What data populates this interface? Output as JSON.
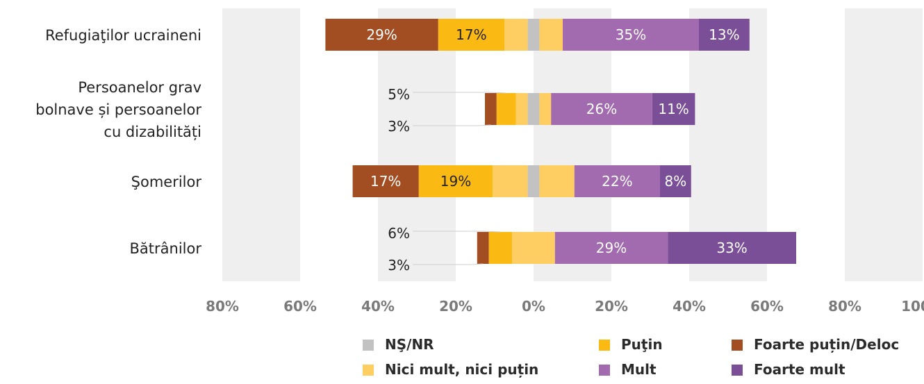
{
  "chart_data": {
    "type": "bar",
    "orientation": "horizontal",
    "stacking": "diverging",
    "categories": [
      "Refugiaţilor ucraineni",
      "Persoanelor grav bolnave și persoanelor cu dizabilități",
      "Şomerilor",
      "Bătrânilor"
    ],
    "category_lines": [
      [
        "Refugiaţilor ucraineni"
      ],
      [
        "Persoanelor grav",
        "bolnave și persoanelor",
        "cu dizabilități"
      ],
      [
        "Şomerilor"
      ],
      [
        "Bătrânilor"
      ]
    ],
    "series": [
      {
        "name": "Foarte puțin/Deloc",
        "side": "negative",
        "color": "#a24e22",
        "label_color": "#ffffff",
        "values": [
          29,
          3,
          17,
          3
        ],
        "labels": [
          "29%",
          "",
          "17%",
          ""
        ]
      },
      {
        "name": "Puţin",
        "side": "negative",
        "color": "#fbb914",
        "label_color": "#222222",
        "values": [
          17,
          5,
          19,
          6
        ],
        "labels": [
          "17%",
          "",
          "19%",
          ""
        ]
      },
      {
        "name": "Nici mult, nici puțin",
        "side": "split",
        "color": "#fece63",
        "label_color": "#222222",
        "values": [
          12,
          6,
          18,
          11
        ],
        "labels": [
          "",
          "",
          "",
          ""
        ]
      },
      {
        "name": "NŞ/NR",
        "side": "split",
        "color": "#c2c2c2",
        "label_color": "#222222",
        "values": [
          3,
          3,
          3,
          0
        ],
        "labels": [
          "",
          "",
          "",
          ""
        ]
      },
      {
        "name": "Mult",
        "side": "positive",
        "color": "#a26aaf",
        "label_color": "#ffffff",
        "values": [
          35,
          26,
          22,
          29
        ],
        "labels": [
          "35%",
          "26%",
          "22%",
          "29%"
        ]
      },
      {
        "name": "Foarte mult",
        "side": "positive",
        "color": "#7b4f98",
        "label_color": "#ffffff",
        "values": [
          13,
          11,
          8,
          33
        ],
        "labels": [
          "13%",
          "11%",
          "8%",
          "33%"
        ]
      }
    ],
    "callouts": [
      {
        "category_index": 1,
        "series": "Puţin",
        "text": "5%"
      },
      {
        "category_index": 1,
        "series": "Foarte puțin/Deloc",
        "text": "3%"
      },
      {
        "category_index": 3,
        "series": "Puţin",
        "text": "6%"
      },
      {
        "category_index": 3,
        "series": "Foarte puțin/Deloc",
        "text": "3%"
      }
    ],
    "x_ticks": [
      "80%",
      "60%",
      "40%",
      "20%",
      "0%",
      "20%",
      "40%",
      "60%",
      "80%",
      "100%"
    ],
    "xlim": [
      -80,
      100
    ],
    "grid": "alternating vertical bands",
    "legend_position": "bottom",
    "legend_order": [
      "NŞ/NR",
      "Puţin",
      "Foarte puțin/Deloc",
      "Nici mult, nici puțin",
      "Mult",
      "Foarte mult"
    ]
  }
}
